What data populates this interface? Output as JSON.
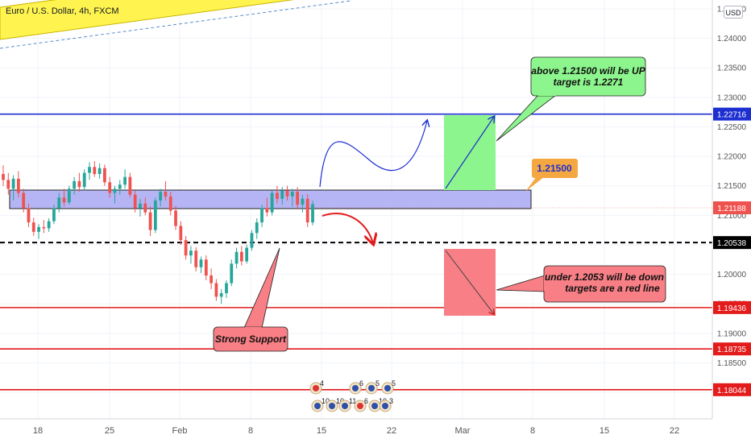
{
  "header": {
    "title": "Euro / U.S. Dollar, 4h, FXCM",
    "currency_button": "USD"
  },
  "chart_data": {
    "type": "candlestick",
    "title": "Euro / U.S. Dollar, 4h, FXCM",
    "x_tick_labels": [
      "18",
      "25",
      "Feb",
      "8",
      "15",
      "22",
      "Mar",
      "8",
      "15",
      "22"
    ],
    "y_tick_labels": [
      "1.24500",
      "1.24000",
      "1.23500",
      "1.23000",
      "1.22500",
      "1.22000",
      "1.21500",
      "1.21000",
      "1.20500",
      "1.20000",
      "1.19500",
      "1.19000",
      "1.18500",
      "1.18000"
    ],
    "ylim": [
      1.1755,
      1.2465
    ],
    "current_price": "1.21188",
    "candles": [
      [
        1.217,
        1.2185,
        1.215,
        1.216
      ],
      [
        1.216,
        1.2172,
        1.2135,
        1.2145
      ],
      [
        1.2145,
        1.2168,
        1.2125,
        1.2162
      ],
      [
        1.2162,
        1.2175,
        1.213,
        1.2138
      ],
      [
        1.2138,
        1.2145,
        1.2105,
        1.2112
      ],
      [
        1.2112,
        1.212,
        1.208,
        1.2088
      ],
      [
        1.2088,
        1.2096,
        1.2065,
        1.2072
      ],
      [
        1.2072,
        1.2085,
        1.206,
        1.208
      ],
      [
        1.208,
        1.2092,
        1.207,
        1.2078
      ],
      [
        1.2078,
        1.2095,
        1.2072,
        1.209
      ],
      [
        1.209,
        1.2118,
        1.2085,
        1.2112
      ],
      [
        1.2112,
        1.2138,
        1.2105,
        1.213
      ],
      [
        1.213,
        1.2145,
        1.2115,
        1.2122
      ],
      [
        1.2122,
        1.215,
        1.2118,
        1.2145
      ],
      [
        1.2145,
        1.2165,
        1.2135,
        1.2158
      ],
      [
        1.2158,
        1.2172,
        1.214,
        1.2148
      ],
      [
        1.2148,
        1.2178,
        1.2142,
        1.2172
      ],
      [
        1.2172,
        1.219,
        1.216,
        1.2182
      ],
      [
        1.2182,
        1.2192,
        1.2165,
        1.217
      ],
      [
        1.217,
        1.2188,
        1.2162,
        1.218
      ],
      [
        1.218,
        1.2186,
        1.215,
        1.2156
      ],
      [
        1.2156,
        1.2165,
        1.213,
        1.2138
      ],
      [
        1.2138,
        1.215,
        1.212,
        1.2145
      ],
      [
        1.2145,
        1.216,
        1.2135,
        1.2152
      ],
      [
        1.2152,
        1.2178,
        1.2145,
        1.2165
      ],
      [
        1.2165,
        1.2172,
        1.213,
        1.2135
      ],
      [
        1.2135,
        1.2142,
        1.2105,
        1.2112
      ],
      [
        1.2112,
        1.2128,
        1.2098,
        1.212
      ],
      [
        1.212,
        1.213,
        1.21,
        1.2105
      ],
      [
        1.2105,
        1.2115,
        1.2065,
        1.2075
      ],
      [
        1.2075,
        1.213,
        1.207,
        1.2125
      ],
      [
        1.2125,
        1.2145,
        1.2115,
        1.214
      ],
      [
        1.214,
        1.2158,
        1.2125,
        1.2132
      ],
      [
        1.2132,
        1.214,
        1.21,
        1.2108
      ],
      [
        1.2108,
        1.2116,
        1.2075,
        1.2082
      ],
      [
        1.2082,
        1.209,
        1.205,
        1.2058
      ],
      [
        1.2058,
        1.2065,
        1.2025,
        1.2032
      ],
      [
        1.2032,
        1.2048,
        1.2018,
        1.204
      ],
      [
        1.204,
        1.2046,
        1.2005,
        1.2012
      ],
      [
        1.2012,
        1.203,
        1.2002,
        1.2025
      ],
      [
        1.2025,
        1.2032,
        1.199,
        1.1998
      ],
      [
        1.1998,
        1.201,
        1.1975,
        1.1985
      ],
      [
        1.1985,
        1.1992,
        1.1955,
        1.1962
      ],
      [
        1.1962,
        1.1975,
        1.195,
        1.1968
      ],
      [
        1.1968,
        1.199,
        1.196,
        1.1985
      ],
      [
        1.1985,
        1.2025,
        1.198,
        1.2018
      ],
      [
        1.2018,
        1.2045,
        1.201,
        1.2038
      ],
      [
        1.2038,
        1.2048,
        1.2015,
        1.2022
      ],
      [
        1.2022,
        1.205,
        1.2018,
        1.2045
      ],
      [
        1.2045,
        1.2075,
        1.204,
        1.207
      ],
      [
        1.207,
        1.2095,
        1.206,
        1.2088
      ],
      [
        1.2088,
        1.2118,
        1.208,
        1.2112
      ],
      [
        1.2112,
        1.213,
        1.2098,
        1.2105
      ],
      [
        1.2105,
        1.2142,
        1.21,
        1.2138
      ],
      [
        1.2138,
        1.215,
        1.212,
        1.2128
      ],
      [
        1.2128,
        1.2148,
        1.2118,
        1.2142
      ],
      [
        1.2142,
        1.215,
        1.2125,
        1.2132
      ],
      [
        1.2132,
        1.2145,
        1.2115,
        1.214
      ],
      [
        1.214,
        1.2148,
        1.211,
        1.2118
      ],
      [
        1.2118,
        1.2135,
        1.2105,
        1.2128
      ],
      [
        1.2128,
        1.2136,
        1.208,
        1.2088
      ],
      [
        1.2088,
        1.2125,
        1.2083,
        1.2119
      ]
    ],
    "annotations": {
      "up_note": [
        "above 1.21500 will be UP",
        "target is 1.2271"
      ],
      "down_note": [
        "under 1.2053 will be down",
        "targets are a red line"
      ],
      "support_note": "Strong Support",
      "level_label": "1.21500"
    },
    "levels": [
      {
        "label": "1.22716",
        "value": 1.22716,
        "color": "#1e2fd1",
        "style": "solid"
      },
      {
        "label": "1.20538",
        "value": 1.20538,
        "color": "#000000",
        "style": "dashed"
      },
      {
        "label": "1.19436",
        "value": 1.19436,
        "color": "#e31b1b",
        "style": "solid"
      },
      {
        "label": "1.18735",
        "value": 1.18735,
        "color": "#e31b1b",
        "style": "solid"
      },
      {
        "label": "1.18044",
        "value": 1.18044,
        "color": "#e31b1b",
        "style": "solid"
      }
    ],
    "event_counts": [
      "4",
      "6",
      "5",
      "5",
      "10",
      "10",
      "11",
      "6",
      "10",
      "3"
    ],
    "colors": {
      "up": "#26a69a",
      "down": "#ef5350",
      "zone": "#b5b5f5",
      "green_box": "#8df58d",
      "red_box": "#f77f85",
      "note_green": "#8df58d",
      "note_red": "#f77f85",
      "orange": "#f5a742",
      "channel": "#fff44f"
    }
  }
}
